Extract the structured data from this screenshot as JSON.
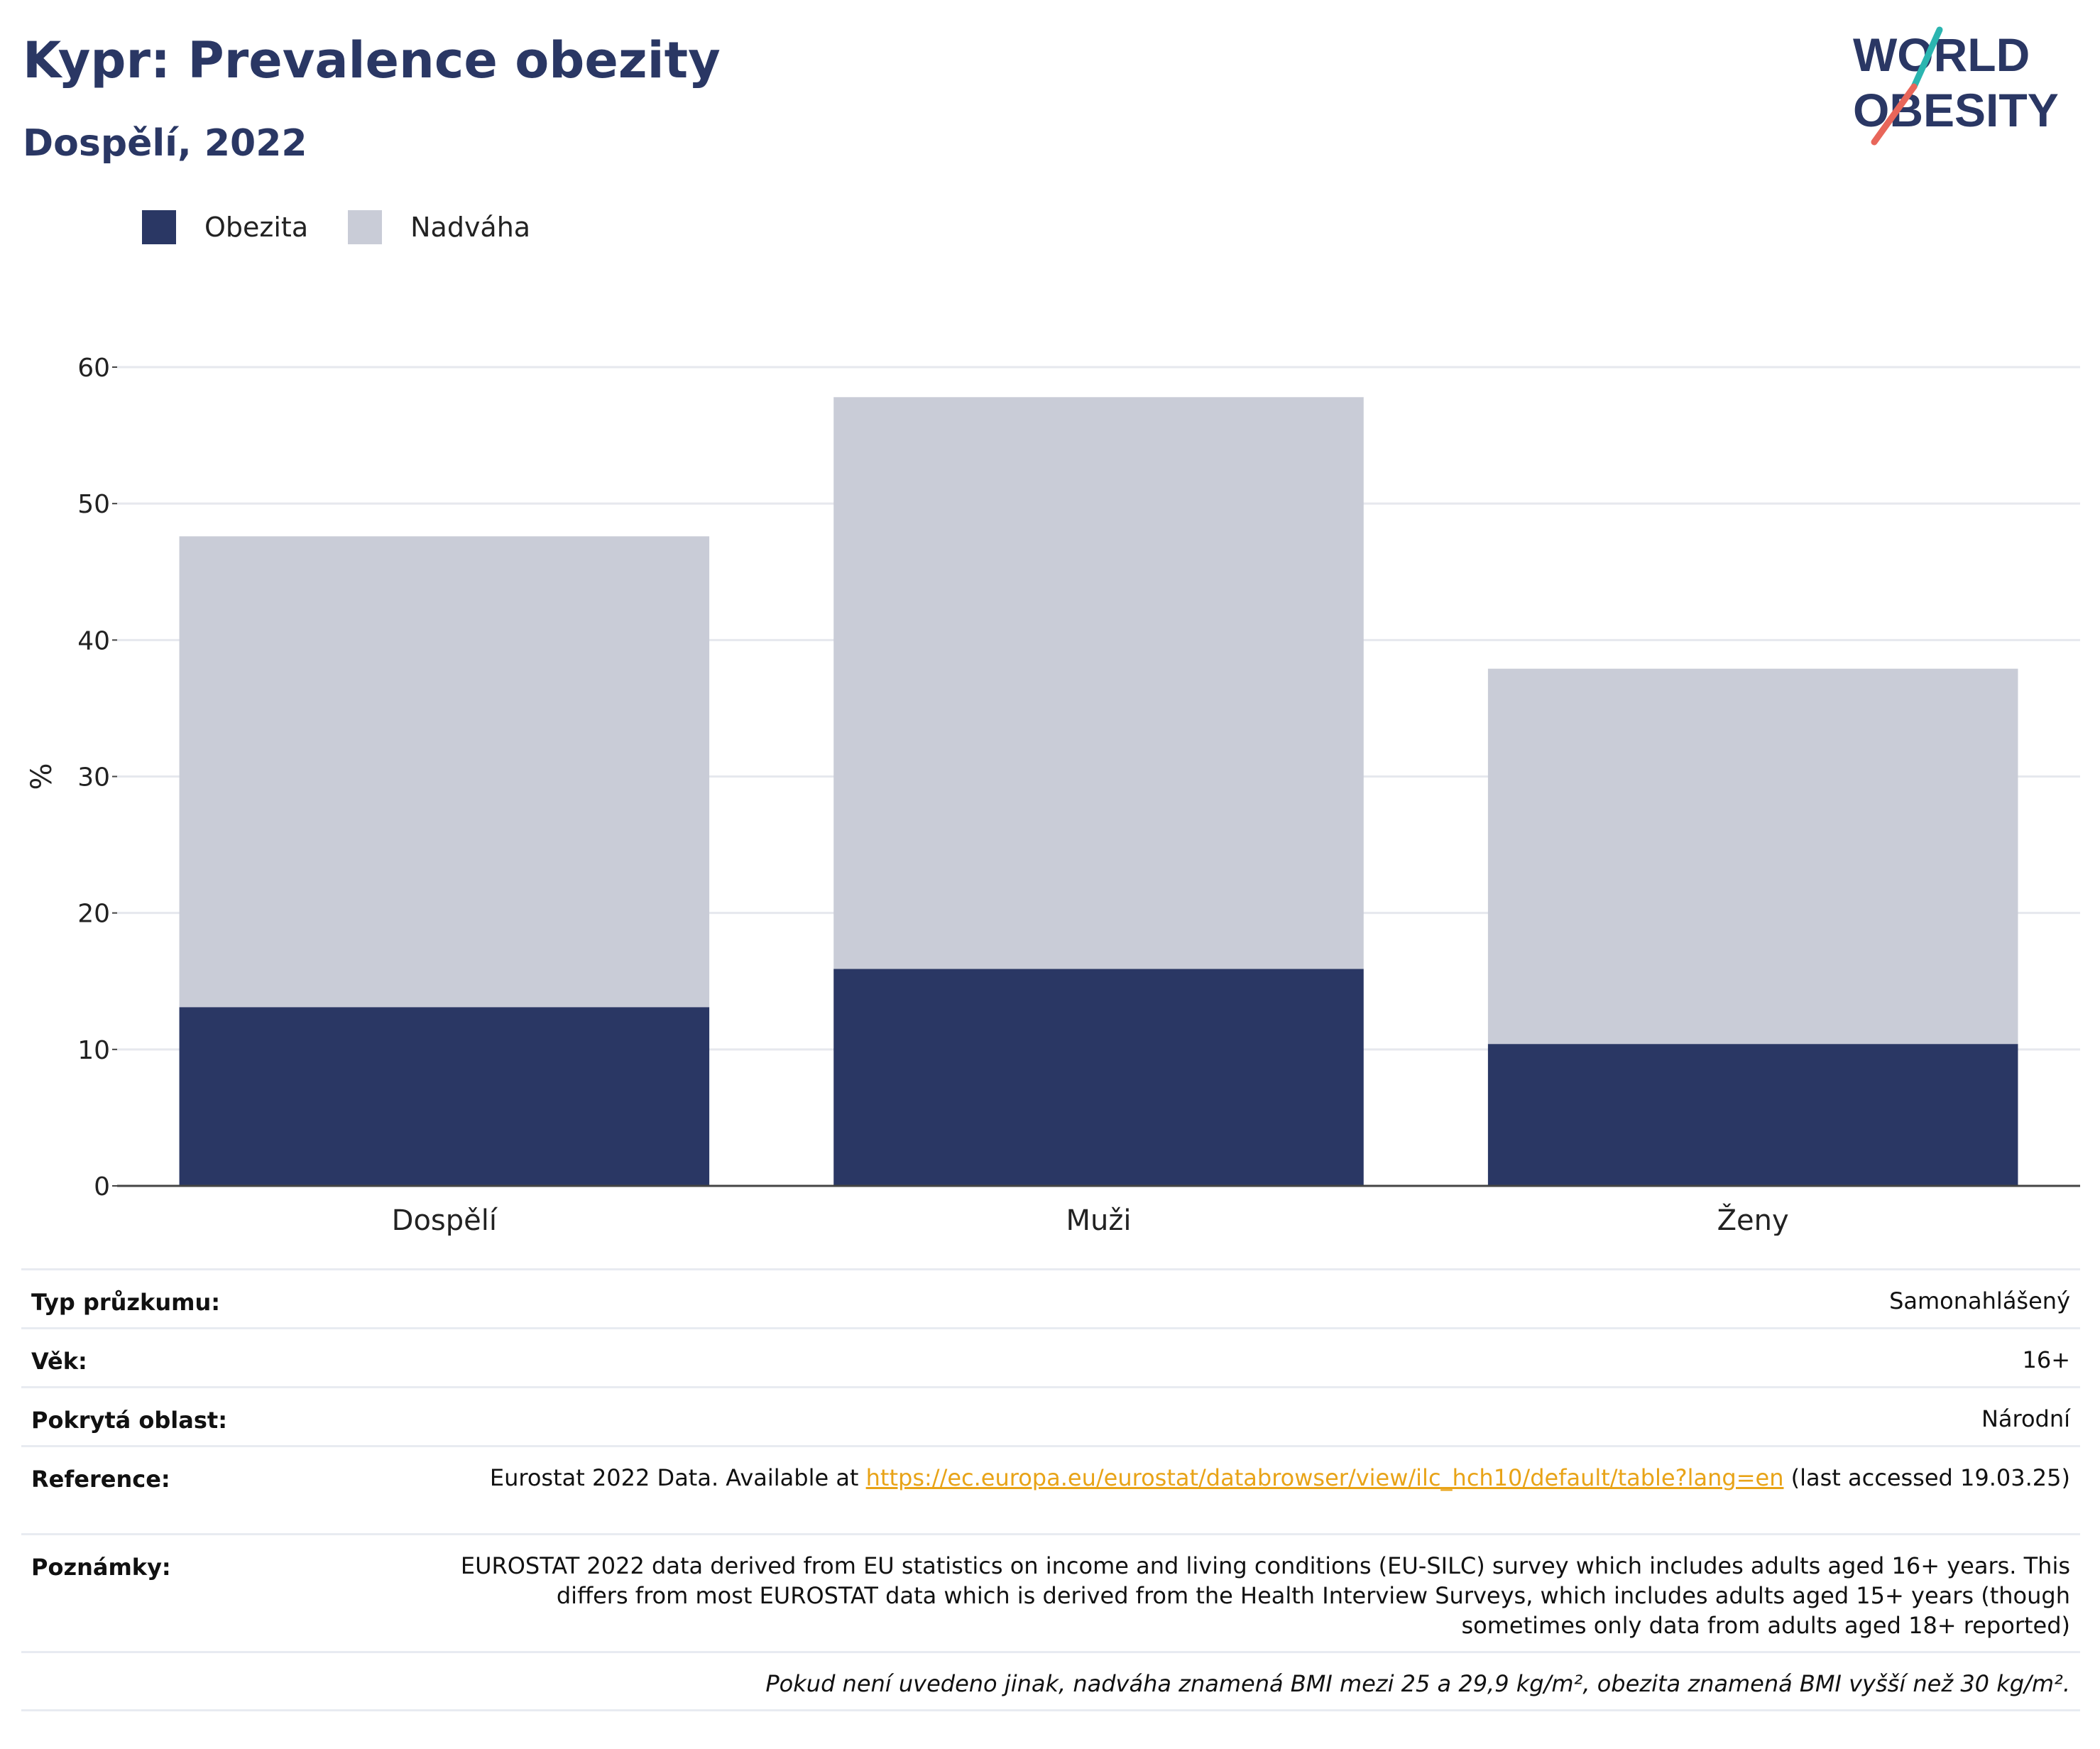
{
  "header": {
    "title": "Kypr: Prevalence obezity",
    "subtitle": "Dospělí, 2022"
  },
  "logo": {
    "line1": "WORLD",
    "line2": "OBESITY",
    "colors": {
      "text": "#2a3764",
      "slash_top": "#2bb5b0",
      "slash_bottom": "#e8665a"
    }
  },
  "legend": [
    {
      "label": "Obezita",
      "color": "#2a3764"
    },
    {
      "label": "Nadváha",
      "color": "#c9ccd7"
    }
  ],
  "chart_data": {
    "type": "bar",
    "stacked": true,
    "categories": [
      "Dospělí",
      "Muži",
      "Ženy"
    ],
    "series": [
      {
        "name": "Obezita",
        "color": "#2a3764",
        "values": [
          13.1,
          15.9,
          10.4
        ]
      },
      {
        "name": "Nadváha",
        "color": "#c9ccd7",
        "values": [
          34.5,
          41.9,
          27.5
        ]
      }
    ],
    "totals": [
      47.6,
      57.8,
      37.9
    ],
    "ylabel": "%",
    "xlabel": "",
    "ylim": [
      0,
      60
    ],
    "yticks": [
      0,
      10,
      20,
      30,
      40,
      50,
      60
    ],
    "grid": true,
    "legend_position": "top-left"
  },
  "info": {
    "survey_label": "Typ průzkumu:",
    "survey_value": "Samonahlášený",
    "age_label": "Věk:",
    "age_value": "16+",
    "area_label": "Pokrytá oblast:",
    "area_value": "Národní",
    "reference_label": "Reference:",
    "reference_prefix": "Eurostat 2022 Data. Available at",
    "reference_link": "https://ec.europa.eu/eurostat/databrowser/view/ilc_hch10/default/table?lang=en",
    "reference_suffix": "(last accessed 19.03.25)",
    "notes_label": "Poznámky:",
    "notes_value": "EUROSTAT 2022 data derived from EU statistics on income and living conditions (EU-SILC) survey which includes adults aged 16+ years. This differs from most EUROSTAT data which is derived from the Health Interview Surveys, which includes adults aged 15+ years (though sometimes only data from adults aged 18+ reported)",
    "footnote": "Pokud není uvedeno jinak, nadváha znamená BMI mezi 25 a 29,9 kg/m², obezita znamená BMI vyšší než 30 kg/m²."
  }
}
